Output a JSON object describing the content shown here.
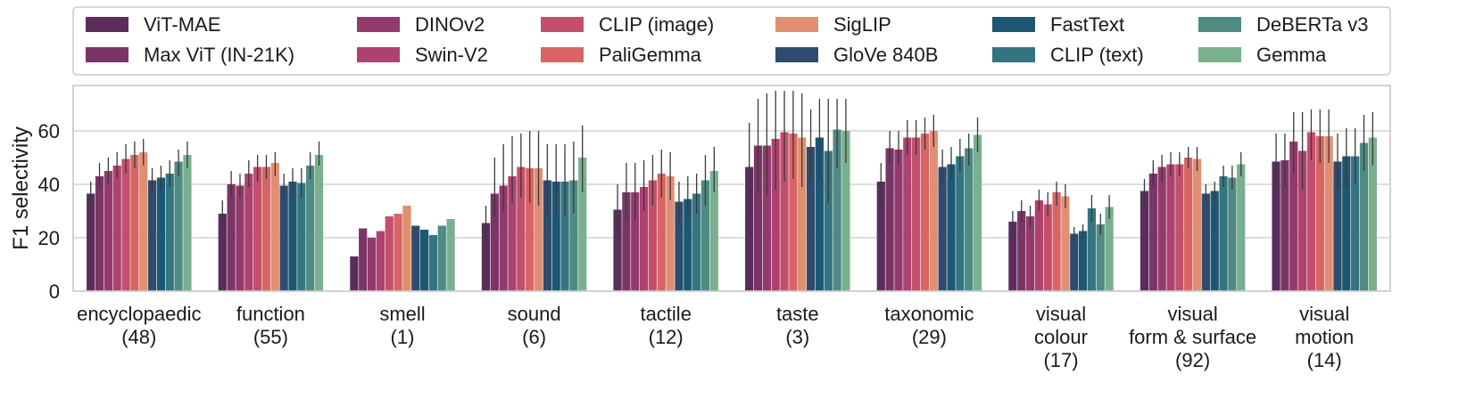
{
  "chart_data": {
    "type": "bar",
    "ylabel": "F1 selectivity",
    "xlabel": "",
    "ylim": [
      0,
      77
    ],
    "yticks": [
      0,
      20,
      40,
      60
    ],
    "grid": true,
    "legend_position": "top",
    "categories": [
      {
        "lines": [
          "encyclopaedic",
          "(48)"
        ]
      },
      {
        "lines": [
          "function",
          "(55)"
        ]
      },
      {
        "lines": [
          "smell",
          "(1)"
        ]
      },
      {
        "lines": [
          "sound",
          "(6)"
        ]
      },
      {
        "lines": [
          "tactile",
          "(12)"
        ]
      },
      {
        "lines": [
          "taste",
          "(3)"
        ]
      },
      {
        "lines": [
          "taxonomic",
          "(29)"
        ]
      },
      {
        "lines": [
          "visual",
          "colour",
          "(17)"
        ]
      },
      {
        "lines": [
          "visual",
          "form & surface",
          "(92)"
        ]
      },
      {
        "lines": [
          "visual",
          "motion",
          "(14)"
        ]
      }
    ],
    "series": [
      {
        "name": "ViT-MAE",
        "color": "#5a2d5c",
        "values": [
          36.5,
          29,
          13,
          25.5,
          30.5,
          46.5,
          41,
          26,
          37.5,
          48.5
        ],
        "errors": [
          [
            32,
            41
          ],
          [
            24,
            34
          ],
          null,
          [
            19,
            32
          ],
          [
            21,
            40
          ],
          [
            30,
            63
          ],
          [
            33,
            48
          ],
          [
            22,
            30
          ],
          [
            33,
            42
          ],
          [
            38,
            59
          ]
        ]
      },
      {
        "name": "Max ViT (IN-21K)",
        "color": "#7a3566",
        "values": [
          43,
          40,
          23.5,
          36.5,
          37,
          54.5,
          53.5,
          30,
          44,
          49
        ],
        "errors": [
          [
            38,
            48
          ],
          [
            35,
            45
          ],
          null,
          [
            28,
            50
          ],
          [
            27,
            48
          ],
          [
            37,
            72
          ],
          [
            47,
            60
          ],
          [
            26,
            34
          ],
          [
            39,
            49
          ],
          [
            39,
            59
          ]
        ]
      },
      {
        "name": "DINOv2",
        "color": "#933a6d",
        "values": [
          45,
          39.5,
          20,
          39.5,
          37,
          54.5,
          53,
          28,
          46.5,
          56
        ],
        "errors": [
          [
            40,
            50
          ],
          [
            35,
            44
          ],
          null,
          [
            30,
            55
          ],
          [
            27,
            48
          ],
          [
            36,
            74
          ],
          [
            47,
            60
          ],
          [
            24,
            32
          ],
          [
            41,
            51
          ],
          [
            44,
            67
          ]
        ]
      },
      {
        "name": "Swin-V2",
        "color": "#ad4270",
        "values": [
          47,
          44,
          22.5,
          43,
          39,
          57,
          57.5,
          34,
          47.5,
          52.5
        ],
        "errors": [
          [
            42,
            52
          ],
          [
            39,
            49
          ],
          null,
          [
            33,
            58
          ],
          [
            30,
            49
          ],
          [
            38,
            75
          ],
          [
            51,
            64
          ],
          [
            30,
            38
          ],
          [
            43,
            52
          ],
          [
            38,
            67
          ]
        ]
      },
      {
        "name": "CLIP (image)",
        "color": "#c44f6d",
        "values": [
          49.5,
          46.5,
          28,
          46.5,
          41.5,
          59.5,
          57.5,
          32.5,
          47.5,
          59.5
        ],
        "errors": [
          [
            44,
            55
          ],
          [
            41,
            51
          ],
          null,
          [
            35,
            59
          ],
          [
            32,
            51
          ],
          [
            41,
            75
          ],
          [
            51,
            64
          ],
          [
            28,
            37
          ],
          [
            43,
            52
          ],
          [
            49,
            68
          ]
        ]
      },
      {
        "name": "PaliGemma",
        "color": "#d86563",
        "values": [
          51,
          46.5,
          29,
          46,
          44,
          59,
          59,
          37,
          50,
          58
        ],
        "errors": [
          [
            46,
            56
          ],
          [
            42,
            51
          ],
          null,
          [
            33,
            60
          ],
          [
            35,
            53
          ],
          [
            42,
            75
          ],
          [
            53,
            65
          ],
          [
            32,
            41
          ],
          [
            46,
            54
          ],
          [
            48,
            68
          ]
        ]
      },
      {
        "name": "SigLIP",
        "color": "#e08f72",
        "values": [
          52,
          48,
          32,
          46,
          43,
          57.5,
          60,
          35.5,
          49.5,
          58
        ],
        "errors": [
          [
            47,
            57
          ],
          [
            43,
            52
          ],
          null,
          [
            32,
            60
          ],
          [
            34,
            52
          ],
          [
            39,
            74
          ],
          [
            54,
            66
          ],
          [
            31,
            40
          ],
          [
            45,
            54
          ],
          [
            48,
            68
          ]
        ]
      },
      {
        "name": "GloVe 840B",
        "color": "#2e4c6e",
        "values": [
          41.5,
          39.5,
          24.5,
          41.5,
          33.5,
          54,
          46.5,
          21.5,
          36.5,
          48.5
        ],
        "errors": [
          [
            37,
            46
          ],
          [
            35,
            44
          ],
          null,
          [
            29,
            55
          ],
          [
            26,
            41
          ],
          [
            41,
            68
          ],
          [
            41,
            53
          ],
          [
            19,
            24
          ],
          [
            33,
            40
          ],
          [
            38,
            59
          ]
        ]
      },
      {
        "name": "FastText",
        "color": "#1e5774",
        "values": [
          42.5,
          41,
          23,
          41,
          34.5,
          57.5,
          47.5,
          22.5,
          37.5,
          50.5
        ],
        "errors": [
          [
            38,
            47
          ],
          [
            36,
            46
          ],
          null,
          [
            28,
            55
          ],
          [
            27,
            43
          ],
          [
            42,
            72
          ],
          [
            42,
            54
          ],
          [
            20,
            25
          ],
          [
            33,
            41
          ],
          [
            39,
            61
          ]
        ]
      },
      {
        "name": "CLIP (text)",
        "color": "#347581",
        "values": [
          44,
          40.5,
          21,
          41,
          36.5,
          52.5,
          50.5,
          31,
          43,
          50.5
        ],
        "errors": [
          [
            39,
            49
          ],
          [
            35,
            46
          ],
          null,
          [
            28,
            55
          ],
          [
            29,
            44
          ],
          [
            33,
            72
          ],
          [
            45,
            57
          ],
          [
            26,
            36
          ],
          [
            39,
            47
          ],
          [
            40,
            61
          ]
        ]
      },
      {
        "name": "DeBERTa v3",
        "color": "#4f8a84",
        "values": [
          48.5,
          47,
          24.5,
          41.5,
          41.5,
          60.5,
          53.5,
          25,
          42.5,
          55.5
        ],
        "errors": [
          [
            43,
            53
          ],
          [
            42,
            52
          ],
          null,
          [
            29,
            56
          ],
          [
            32,
            51
          ],
          [
            46,
            72
          ],
          [
            47,
            59
          ],
          [
            21,
            29
          ],
          [
            38,
            47
          ],
          [
            45,
            66
          ]
        ]
      },
      {
        "name": "Gemma",
        "color": "#7ab08d",
        "values": [
          51,
          51,
          27,
          50,
          45,
          60,
          58.5,
          31.5,
          47.5,
          57.5
        ],
        "errors": [
          [
            46,
            56
          ],
          [
            47,
            56
          ],
          null,
          [
            37,
            62
          ],
          [
            37,
            54
          ],
          [
            48,
            72
          ],
          [
            52,
            65
          ],
          [
            27,
            36
          ],
          [
            43,
            52
          ],
          [
            47,
            67
          ]
        ]
      }
    ]
  }
}
